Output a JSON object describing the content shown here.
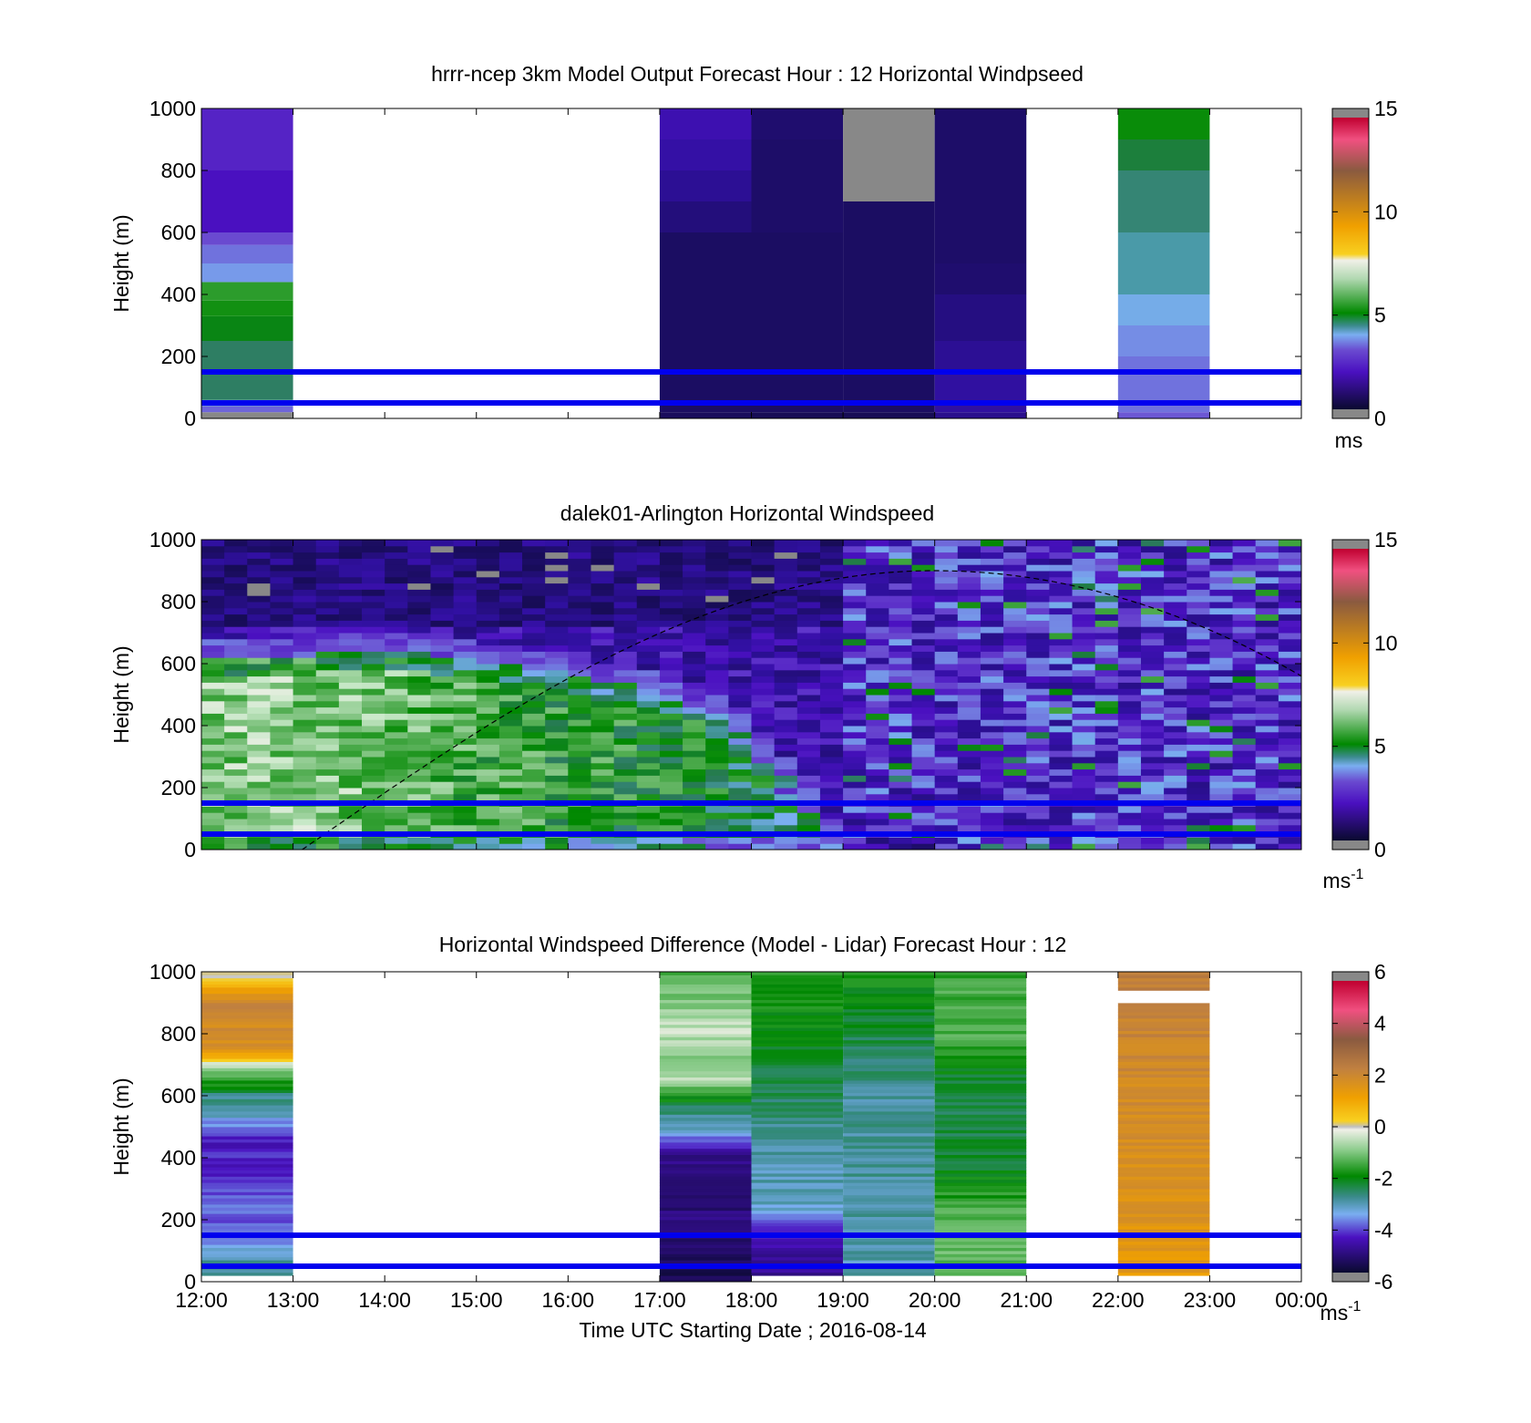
{
  "figure": {
    "xlabel": "Time UTC  Starting Date ; 2016-08-14"
  },
  "chart_data": [
    {
      "type": "heatmap",
      "title": "hrrr-ncep 3km Model Output   Forecast Hour : 12 Horizontal Windpseed",
      "ylabel": "Height (m)",
      "colorbar_label": "ms",
      "colorbar_superscript": "",
      "ylim": [
        0,
        1000
      ],
      "yticks": [
        "0",
        "200",
        "400",
        "600",
        "800",
        "1000"
      ],
      "clim": [
        0,
        15
      ],
      "cticks": [
        "0",
        "5",
        "10",
        "15"
      ],
      "xticks": [
        "12:00",
        "13:00",
        "14:00",
        "15:00",
        "16:00",
        "17:00",
        "18:00",
        "19:00",
        "20:00",
        "21:00",
        "22:00",
        "23:00",
        "00:00"
      ],
      "show_xtick_labels": false,
      "reference_lines_m": [
        50,
        150
      ],
      "columns": [
        {
          "hour": 12,
          "bins": [
            [
              0,
              20,
              null
            ],
            [
              20,
              40,
              3.2
            ],
            [
              40,
              60,
              4.0
            ],
            [
              60,
              250,
              4.6
            ],
            [
              250,
              330,
              5.0
            ],
            [
              330,
              380,
              5.3
            ],
            [
              380,
              440,
              5.6
            ],
            [
              440,
              500,
              3.6
            ],
            [
              500,
              560,
              3.3
            ],
            [
              560,
              600,
              3.0
            ],
            [
              600,
              800,
              2.4
            ],
            [
              800,
              1000,
              2.6
            ]
          ]
        },
        {
          "hour": 17,
          "bins": [
            [
              0,
              20,
              0.7
            ],
            [
              20,
              600,
              0.8
            ],
            [
              600,
              700,
              1.2
            ],
            [
              700,
              800,
              1.6
            ],
            [
              800,
              900,
              1.9
            ],
            [
              900,
              1000,
              2.1
            ]
          ]
        },
        {
          "hour": 18,
          "bins": [
            [
              0,
              20,
              0.6
            ],
            [
              20,
              600,
              0.8
            ],
            [
              600,
              900,
              0.9
            ],
            [
              900,
              1000,
              1.0
            ]
          ]
        },
        {
          "hour": 19,
          "bins": [
            [
              0,
              20,
              0.6
            ],
            [
              20,
              700,
              0.8
            ],
            [
              700,
              1000,
              null
            ]
          ]
        },
        {
          "hour": 20,
          "bins": [
            [
              0,
              20,
              1.5
            ],
            [
              20,
              150,
              1.8
            ],
            [
              150,
              250,
              1.6
            ],
            [
              250,
              400,
              1.3
            ],
            [
              400,
              500,
              1.0
            ],
            [
              500,
              1000,
              0.9
            ]
          ]
        },
        {
          "hour": 22,
          "bins": [
            [
              0,
              20,
              3.1
            ],
            [
              20,
              200,
              3.3
            ],
            [
              200,
              300,
              3.5
            ],
            [
              300,
              400,
              3.8
            ],
            [
              400,
              600,
              4.2
            ],
            [
              600,
              800,
              4.5
            ],
            [
              800,
              900,
              4.8
            ],
            [
              900,
              1000,
              5.2
            ]
          ]
        }
      ]
    },
    {
      "type": "heatmap",
      "title": "dalek01-Arlington  Horizontal Windspeed",
      "ylabel": "Height (m)",
      "colorbar_label": "ms",
      "colorbar_superscript": "-1",
      "ylim": [
        0,
        1000
      ],
      "yticks": [
        "0",
        "200",
        "400",
        "600",
        "800",
        "1000"
      ],
      "clim": [
        0,
        15
      ],
      "cticks": [
        "0",
        "5",
        "10",
        "15"
      ],
      "xticks": [
        "12:00",
        "13:00",
        "14:00",
        "15:00",
        "16:00",
        "17:00",
        "18:00",
        "19:00",
        "20:00",
        "21:00",
        "22:00",
        "23:00",
        "00:00"
      ],
      "show_xtick_labels": false,
      "reference_lines_m": [
        50,
        150
      ],
      "boundary_layer_curve": {
        "start_hour": 13.1,
        "peak_hour": 20.0,
        "peak_height_m": 900,
        "end_hour": 24.0,
        "end_height_m": 560
      },
      "profile_interval_hours": 0.25,
      "profile_points": [
        {
          "hour": 12.0,
          "jet_top_m": 620,
          "jet_speed": 6.5
        },
        {
          "hour": 13.0,
          "jet_top_m": 610,
          "jet_speed": 6.6
        },
        {
          "hour": 14.0,
          "jet_top_m": 640,
          "jet_speed": 6.3
        },
        {
          "hour": 15.0,
          "jet_top_m": 600,
          "jet_speed": 5.8
        },
        {
          "hour": 16.0,
          "jet_top_m": 560,
          "jet_speed": 5.6
        },
        {
          "hour": 17.0,
          "jet_top_m": 500,
          "jet_speed": 5.4
        },
        {
          "hour": 17.75,
          "jet_top_m": 420,
          "jet_speed": 5.0
        },
        {
          "hour": 18.5,
          "jet_top_m": 200,
          "jet_speed": 4.6
        },
        {
          "hour": 19.0,
          "jet_top_m": 60,
          "jet_speed": 4.4
        },
        {
          "hour": 20.0,
          "jet_top_m": 0,
          "jet_speed": 2.8
        },
        {
          "hour": 22.0,
          "jet_top_m": 0,
          "jet_speed": 2.2
        },
        {
          "hour": 24.0,
          "jet_top_m": 0,
          "jet_speed": 3.2
        }
      ]
    },
    {
      "type": "heatmap",
      "title": "Horizontal Windspeed Difference (Model - Lidar) Forecast Hour : 12",
      "ylabel": "Height (m)",
      "colorbar_label": "ms",
      "colorbar_superscript": "-1",
      "ylim": [
        0,
        1000
      ],
      "yticks": [
        "0",
        "200",
        "400",
        "600",
        "800",
        "1000"
      ],
      "clim": [
        -6,
        6
      ],
      "cticks": [
        "-6",
        "-4",
        "-2",
        "0",
        "2",
        "4",
        "6"
      ],
      "xticks": [
        "12:00",
        "13:00",
        "14:00",
        "15:00",
        "16:00",
        "17:00",
        "18:00",
        "19:00",
        "20:00",
        "21:00",
        "22:00",
        "23:00",
        "00:00"
      ],
      "show_xtick_labels": true,
      "reference_lines_m": [
        50,
        150
      ],
      "columns": [
        {
          "hour": 12,
          "profile": [
            [
              0,
              -3.2
            ],
            [
              50,
              -3.0
            ],
            [
              150,
              -4.2
            ],
            [
              250,
              -4.0
            ],
            [
              350,
              -4.4
            ],
            [
              450,
              -4.6
            ],
            [
              520,
              -3.5
            ],
            [
              600,
              -2.8
            ],
            [
              680,
              -0.8
            ],
            [
              750,
              1.8
            ],
            [
              900,
              2.2
            ],
            [
              970,
              0.4
            ],
            [
              1000,
              -0.4
            ]
          ]
        },
        {
          "hour": 17,
          "profile": [
            [
              0,
              -5.8
            ],
            [
              60,
              -5.5
            ],
            [
              200,
              -5.3
            ],
            [
              400,
              -5.0
            ],
            [
              450,
              -4.0
            ],
            [
              500,
              -3.2
            ],
            [
              560,
              -2.6
            ],
            [
              650,
              -0.6
            ],
            [
              700,
              -1.2
            ],
            [
              800,
              -0.5
            ],
            [
              900,
              -1.0
            ],
            [
              1000,
              -1.4
            ]
          ]
        },
        {
          "hour": 18,
          "profile": [
            [
              0,
              -5.0
            ],
            [
              120,
              -4.8
            ],
            [
              200,
              -3.8
            ],
            [
              260,
              -3.2
            ],
            [
              400,
              -3.1
            ],
            [
              600,
              -2.6
            ],
            [
              800,
              -2.0
            ],
            [
              1000,
              -1.8
            ]
          ]
        },
        {
          "hour": 19,
          "profile": [
            [
              0,
              -3.2
            ],
            [
              200,
              -3.1
            ],
            [
              400,
              -3.0
            ],
            [
              600,
              -3.0
            ],
            [
              800,
              -2.4
            ],
            [
              1000,
              -1.8
            ]
          ]
        },
        {
          "hour": 20,
          "profile": [
            [
              0,
              -1.2
            ],
            [
              200,
              -1.4
            ],
            [
              400,
              -2.4
            ],
            [
              600,
              -2.6
            ],
            [
              800,
              -1.4
            ],
            [
              1000,
              -1.6
            ]
          ]
        },
        {
          "hour": 22,
          "profile": [
            [
              0,
              1.4
            ],
            [
              300,
              1.8
            ],
            [
              600,
              2.0
            ],
            [
              900,
              2.3
            ],
            [
              920,
              null
            ],
            [
              940,
              2.4
            ],
            [
              1000,
              2.4
            ]
          ]
        }
      ]
    }
  ]
}
